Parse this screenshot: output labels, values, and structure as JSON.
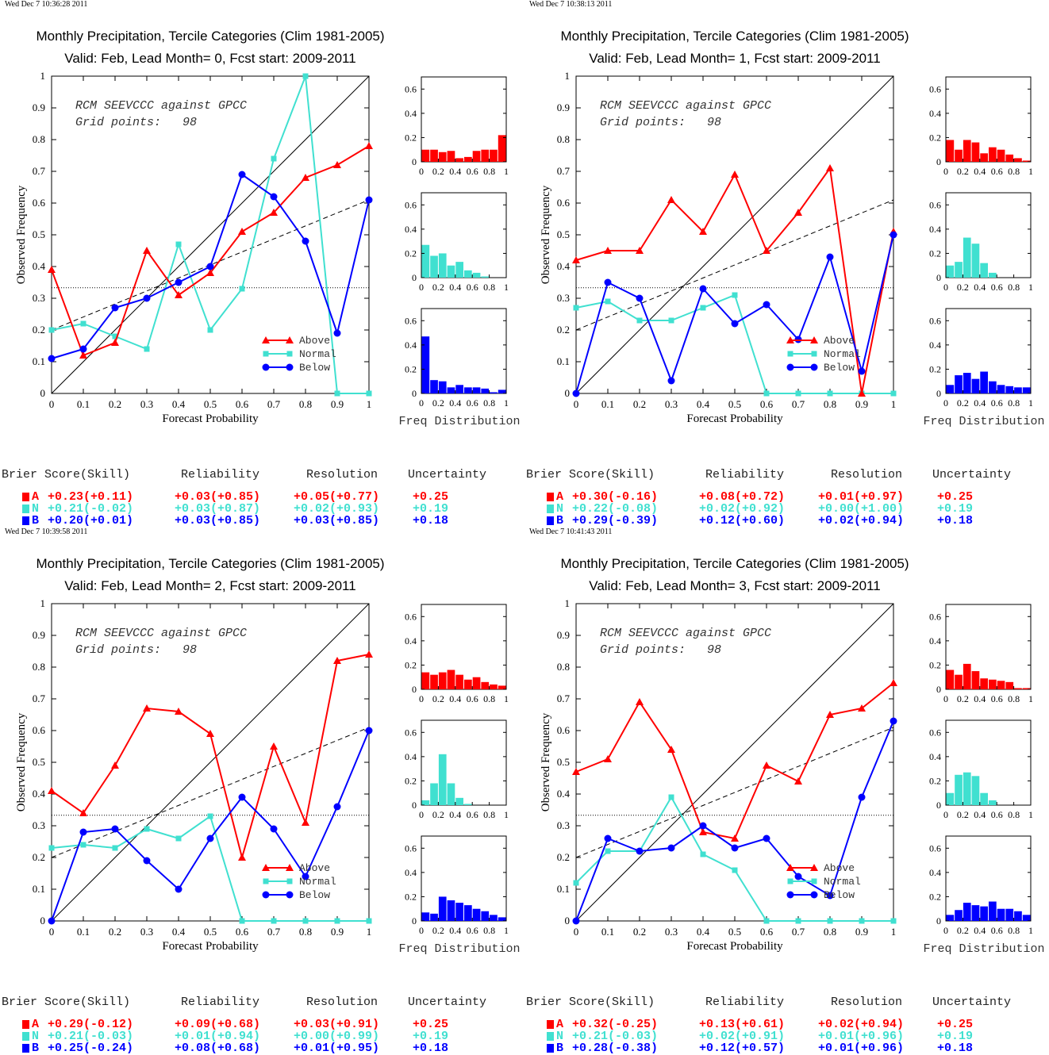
{
  "colors": {
    "above": "#ff0000",
    "normal": "#40e0d0",
    "below": "#0000ff"
  },
  "labels": {
    "xlabel": "Forecast Probability",
    "ylabel": "Observed Frequency",
    "hist_label": "Freq Distribution",
    "legend": [
      "Above",
      "Normal",
      "Below"
    ],
    "annotation_line1": "RCM SEEVCCC against GPCC",
    "annotation_line2": "Grid points:   98",
    "score_headers": [
      "Brier Score(Skill)",
      "Reliability",
      "Resolution",
      "Uncertainty"
    ],
    "score_rows": [
      "A",
      "N",
      "B"
    ]
  },
  "panels": [
    {
      "timestamp": "Wed Dec  7 10:36:28 2011",
      "title1": "Monthly Precipitation, Tercile Categories (Clim 1981-2005)",
      "title2": "Valid: Feb, Lead Month= 0, Fcst start: 2009-2011",
      "scores": [
        [
          "+0.23(+0.11)",
          "+0.03(+0.85)",
          "+0.05(+0.77)",
          "+0.25"
        ],
        [
          "+0.21(-0.02)",
          "+0.03(+0.87)",
          "+0.02(+0.93)",
          "+0.19"
        ],
        [
          "+0.20(+0.01)",
          "+0.03(+0.85)",
          "+0.03(+0.85)",
          "+0.18"
        ]
      ]
    },
    {
      "timestamp": "Wed Dec  7 10:38:13 2011",
      "title1": "Monthly Precipitation, Tercile Categories (Clim 1981-2005)",
      "title2": "Valid: Feb, Lead Month= 1, Fcst start: 2009-2011",
      "scores": [
        [
          "+0.30(-0.16)",
          "+0.08(+0.72)",
          "+0.01(+0.97)",
          "+0.25"
        ],
        [
          "+0.22(-0.08)",
          "+0.02(+0.92)",
          "+0.00(+1.00)",
          "+0.19"
        ],
        [
          "+0.29(-0.39)",
          "+0.12(+0.60)",
          "+0.02(+0.94)",
          "+0.18"
        ]
      ]
    },
    {
      "timestamp": "Wed Dec  7 10:39:58 2011",
      "title1": "Monthly Precipitation, Tercile Categories (Clim 1981-2005)",
      "title2": "Valid: Feb, Lead Month= 2, Fcst start: 2009-2011",
      "scores": [
        [
          "+0.29(-0.12)",
          "+0.09(+0.68)",
          "+0.03(+0.91)",
          "+0.25"
        ],
        [
          "+0.21(-0.03)",
          "+0.01(+0.94)",
          "+0.00(+0.99)",
          "+0.19"
        ],
        [
          "+0.25(-0.24)",
          "+0.08(+0.68)",
          "+0.01(+0.95)",
          "+0.18"
        ]
      ]
    },
    {
      "timestamp": "Wed Dec  7 10:41:43 2011",
      "title1": "Monthly Precipitation, Tercile Categories (Clim 1981-2005)",
      "title2": "Valid: Feb, Lead Month= 3, Fcst start: 2009-2011",
      "scores": [
        [
          "+0.32(-0.25)",
          "+0.13(+0.61)",
          "+0.02(+0.94)",
          "+0.25"
        ],
        [
          "+0.21(-0.03)",
          "+0.02(+0.91)",
          "+0.01(+0.96)",
          "+0.19"
        ],
        [
          "+0.28(-0.38)",
          "+0.12(+0.57)",
          "+0.01(+0.96)",
          "+0.18"
        ]
      ]
    }
  ],
  "chart_data": [
    {
      "type": "line",
      "x": [
        0,
        0.1,
        0.2,
        0.3,
        0.4,
        0.5,
        0.6,
        0.7,
        0.8,
        0.9,
        1
      ],
      "xlim": [
        0,
        1
      ],
      "ylim": [
        0,
        1
      ],
      "xticks": [
        "0",
        "0.1",
        "0.2",
        "0.3",
        "0.4",
        "0.5",
        "0.6",
        "0.7",
        "0.8",
        "0.9",
        "1"
      ],
      "yticks": [
        "0",
        "0.1",
        "0.2",
        "0.3",
        "0.4",
        "0.5",
        "0.6",
        "0.7",
        "0.8",
        "0.9",
        "1"
      ],
      "climatology": 0.333,
      "skill_line": [
        0.2,
        0.61
      ],
      "series": [
        {
          "name": "Above",
          "values": [
            0.39,
            0.12,
            0.16,
            0.45,
            0.31,
            0.38,
            0.51,
            0.57,
            0.68,
            0.72,
            0.78
          ]
        },
        {
          "name": "Normal",
          "values": [
            0.2,
            0.22,
            0.18,
            0.14,
            0.47,
            0.2,
            0.33,
            0.74,
            1.0,
            0.0,
            0.0
          ]
        },
        {
          "name": "Below",
          "values": [
            0.11,
            0.14,
            0.27,
            0.3,
            0.35,
            0.4,
            0.69,
            0.62,
            0.48,
            0.19,
            0.61
          ]
        }
      ],
      "histograms": {
        "type": "bar",
        "x_bins": [
          0,
          0.1,
          0.2,
          0.3,
          0.4,
          0.5,
          0.6,
          0.7,
          0.8,
          0.9,
          1
        ],
        "ylim": [
          0,
          0.7
        ],
        "yticks": [
          "0",
          "0.2",
          "0.4",
          "0.6"
        ],
        "xticks": [
          "0",
          "0.2",
          "0.4",
          "0.6",
          "0.8",
          "1"
        ],
        "Above": [
          0.1,
          0.1,
          0.08,
          0.09,
          0.03,
          0.04,
          0.09,
          0.1,
          0.1,
          0.22
        ],
        "Normal": [
          0.27,
          0.18,
          0.2,
          0.1,
          0.13,
          0.06,
          0.04,
          0.01,
          0,
          0
        ],
        "Below": [
          0.47,
          0.11,
          0.1,
          0.05,
          0.07,
          0.05,
          0.05,
          0.04,
          0.01,
          0.03
        ]
      }
    },
    {
      "type": "line",
      "x": [
        0,
        0.1,
        0.2,
        0.3,
        0.4,
        0.5,
        0.6,
        0.7,
        0.8,
        0.9,
        1
      ],
      "xlim": [
        0,
        1
      ],
      "ylim": [
        0,
        1
      ],
      "xticks": [
        "0",
        "0.1",
        "0.2",
        "0.3",
        "0.4",
        "0.5",
        "0.6",
        "0.7",
        "0.8",
        "0.9",
        "1"
      ],
      "yticks": [
        "0",
        "0.1",
        "0.2",
        "0.3",
        "0.4",
        "0.5",
        "0.6",
        "0.7",
        "0.8",
        "0.9",
        "1"
      ],
      "climatology": 0.333,
      "skill_line": [
        0.2,
        0.61
      ],
      "series": [
        {
          "name": "Above",
          "values": [
            0.42,
            0.45,
            0.45,
            0.61,
            0.51,
            0.69,
            0.45,
            0.57,
            0.71,
            0.0,
            0.51
          ]
        },
        {
          "name": "Normal",
          "values": [
            0.27,
            0.29,
            0.23,
            0.23,
            0.27,
            0.31,
            0.0,
            0.0,
            0.0,
            0.0,
            0.0
          ]
        },
        {
          "name": "Below",
          "values": [
            0.0,
            0.35,
            0.3,
            0.04,
            0.33,
            0.22,
            0.28,
            0.17,
            0.43,
            0.07,
            0.5
          ]
        }
      ],
      "histograms": {
        "type": "bar",
        "x_bins": [
          0,
          0.1,
          0.2,
          0.3,
          0.4,
          0.5,
          0.6,
          0.7,
          0.8,
          0.9,
          1
        ],
        "ylim": [
          0,
          0.7
        ],
        "yticks": [
          "0",
          "0.2",
          "0.4",
          "0.6"
        ],
        "xticks": [
          "0",
          "0.2",
          "0.4",
          "0.6",
          "0.8",
          "1"
        ],
        "Above": [
          0.18,
          0.1,
          0.18,
          0.16,
          0.07,
          0.12,
          0.1,
          0.06,
          0.03,
          0.01
        ],
        "Normal": [
          0.1,
          0.13,
          0.33,
          0.28,
          0.12,
          0.04,
          0,
          0,
          0,
          0
        ],
        "Below": [
          0.07,
          0.15,
          0.17,
          0.12,
          0.18,
          0.1,
          0.07,
          0.06,
          0.05,
          0.05
        ]
      }
    },
    {
      "type": "line",
      "x": [
        0,
        0.1,
        0.2,
        0.3,
        0.4,
        0.5,
        0.6,
        0.7,
        0.8,
        0.9,
        1
      ],
      "xlim": [
        0,
        1
      ],
      "ylim": [
        0,
        1
      ],
      "xticks": [
        "0",
        "0.1",
        "0.2",
        "0.3",
        "0.4",
        "0.5",
        "0.6",
        "0.7",
        "0.8",
        "0.9",
        "1"
      ],
      "yticks": [
        "0",
        "0.1",
        "0.2",
        "0.3",
        "0.4",
        "0.5",
        "0.6",
        "0.7",
        "0.8",
        "0.9",
        "1"
      ],
      "climatology": 0.333,
      "skill_line": [
        0.2,
        0.61
      ],
      "series": [
        {
          "name": "Above",
          "values": [
            0.41,
            0.34,
            0.49,
            0.67,
            0.66,
            0.59,
            0.2,
            0.55,
            0.31,
            0.82,
            0.84
          ]
        },
        {
          "name": "Normal",
          "values": [
            0.23,
            0.24,
            0.23,
            0.29,
            0.26,
            0.33,
            0.0,
            0.0,
            0.0,
            0.0,
            0.0
          ]
        },
        {
          "name": "Below",
          "values": [
            0.0,
            0.28,
            0.29,
            0.19,
            0.1,
            0.26,
            0.39,
            0.29,
            0.14,
            0.36,
            0.6
          ]
        }
      ],
      "histograms": {
        "type": "bar",
        "x_bins": [
          0,
          0.1,
          0.2,
          0.3,
          0.4,
          0.5,
          0.6,
          0.7,
          0.8,
          0.9,
          1
        ],
        "ylim": [
          0,
          0.7
        ],
        "yticks": [
          "0",
          "0.2",
          "0.4",
          "0.6"
        ],
        "xticks": [
          "0",
          "0.2",
          "0.4",
          "0.6",
          "0.8",
          "1"
        ],
        "Above": [
          0.14,
          0.12,
          0.14,
          0.16,
          0.12,
          0.08,
          0.1,
          0.06,
          0.04,
          0.03
        ],
        "Normal": [
          0.04,
          0.18,
          0.42,
          0.18,
          0.06,
          0.01,
          0,
          0,
          0,
          0
        ],
        "Below": [
          0.07,
          0.06,
          0.2,
          0.17,
          0.15,
          0.13,
          0.1,
          0.08,
          0.05,
          0.03
        ]
      }
    },
    {
      "type": "line",
      "x": [
        0,
        0.1,
        0.2,
        0.3,
        0.4,
        0.5,
        0.6,
        0.7,
        0.8,
        0.9,
        1
      ],
      "xlim": [
        0,
        1
      ],
      "ylim": [
        0,
        1
      ],
      "xticks": [
        "0",
        "0.1",
        "0.2",
        "0.3",
        "0.4",
        "0.5",
        "0.6",
        "0.7",
        "0.8",
        "0.9",
        "1"
      ],
      "yticks": [
        "0",
        "0.1",
        "0.2",
        "0.3",
        "0.4",
        "0.5",
        "0.6",
        "0.7",
        "0.8",
        "0.9",
        "1"
      ],
      "climatology": 0.333,
      "skill_line": [
        0.2,
        0.61
      ],
      "series": [
        {
          "name": "Above",
          "values": [
            0.47,
            0.51,
            0.69,
            0.54,
            0.28,
            0.26,
            0.49,
            0.44,
            0.65,
            0.67,
            0.75
          ]
        },
        {
          "name": "Normal",
          "values": [
            0.12,
            0.22,
            0.22,
            0.39,
            0.21,
            0.16,
            0.0,
            0.0,
            0.0,
            0.0,
            0.0
          ]
        },
        {
          "name": "Below",
          "values": [
            0.0,
            0.26,
            0.22,
            0.23,
            0.3,
            0.23,
            0.26,
            0.14,
            0.08,
            0.39,
            0.63
          ]
        }
      ],
      "histograms": {
        "type": "bar",
        "x_bins": [
          0,
          0.1,
          0.2,
          0.3,
          0.4,
          0.5,
          0.6,
          0.7,
          0.8,
          0.9,
          1
        ],
        "ylim": [
          0,
          0.7
        ],
        "yticks": [
          "0",
          "0.2",
          "0.4",
          "0.6"
        ],
        "xticks": [
          "0",
          "0.2",
          "0.4",
          "0.6",
          "0.8",
          "1"
        ],
        "Above": [
          0.16,
          0.12,
          0.21,
          0.15,
          0.09,
          0.08,
          0.07,
          0.06,
          0.01,
          0.01
        ],
        "Normal": [
          0.1,
          0.25,
          0.27,
          0.24,
          0.1,
          0.04,
          0,
          0,
          0,
          0
        ],
        "Below": [
          0.05,
          0.09,
          0.15,
          0.13,
          0.12,
          0.16,
          0.1,
          0.1,
          0.08,
          0.05
        ]
      }
    }
  ]
}
